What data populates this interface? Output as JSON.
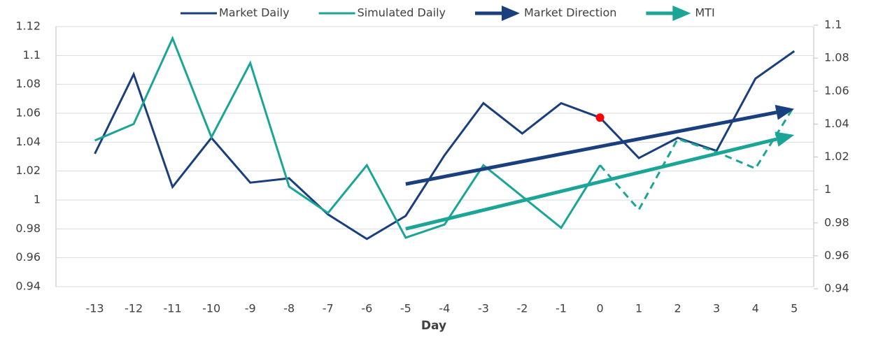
{
  "chart_data": {
    "type": "line",
    "x": [
      -13,
      -12,
      -11,
      -10,
      -9,
      -8,
      -7,
      -6,
      -5,
      -4,
      -3,
      -2,
      -1,
      0,
      1,
      2,
      3,
      4,
      5
    ],
    "xlim": [
      -14,
      5.5
    ],
    "xticks": [
      -13,
      -12,
      -11,
      -10,
      -9,
      -8,
      -7,
      -6,
      -5,
      -4,
      -3,
      -2,
      -1,
      0,
      1,
      2,
      3,
      4,
      5
    ],
    "xlabel": "Day",
    "ylim": [
      0.94,
      1.12
    ],
    "yticks": [
      0.94,
      0.96,
      0.98,
      1,
      1.02,
      1.04,
      1.06,
      1.08,
      1.1,
      1.12
    ],
    "y2lim": [
      0.94,
      1.1
    ],
    "y2ticks": [
      0.94,
      0.96,
      0.98,
      1,
      1.02,
      1.04,
      1.06,
      1.08,
      1.1
    ],
    "grid": true,
    "legend": "top",
    "series": [
      {
        "name": "Market Daily",
        "color": "#1a3f7e",
        "highlight_index": 13,
        "highlight_color": "#ff0000",
        "values": [
          1.032,
          1.087,
          1.009,
          1.043,
          1.012,
          1.015,
          0.99,
          0.973,
          0.989,
          1.031,
          1.067,
          1.046,
          1.067,
          1.057,
          1.029,
          1.043,
          1.034,
          1.084,
          1.103
        ]
      },
      {
        "name": "Simulated Daily",
        "color": "#1aa597",
        "axis": "y2",
        "values": [
          1.03,
          1.04,
          1.092,
          1.032,
          1.077,
          1.002,
          0.986,
          1.015,
          0.971,
          0.979,
          1.015,
          0.996,
          0.977,
          1.015,
          null,
          null,
          null,
          null,
          null
        ]
      },
      {
        "color": "#1aa597",
        "axis": "y2",
        "dashed": true,
        "values": [
          null,
          null,
          null,
          null,
          null,
          null,
          null,
          null,
          null,
          null,
          null,
          null,
          null,
          1.015,
          0.988,
          1.031,
          1.023,
          1.013,
          1.051
        ]
      },
      {
        "name": "Market Direction",
        "color": "#1a3f7e",
        "arrow": true,
        "x": [
          -5,
          5
        ],
        "values": [
          1.011,
          1.063
        ]
      },
      {
        "name": "MTI",
        "color": "#1aa597",
        "arrow": true,
        "x": [
          -5,
          5
        ],
        "values": [
          0.98,
          1.045
        ]
      }
    ]
  }
}
